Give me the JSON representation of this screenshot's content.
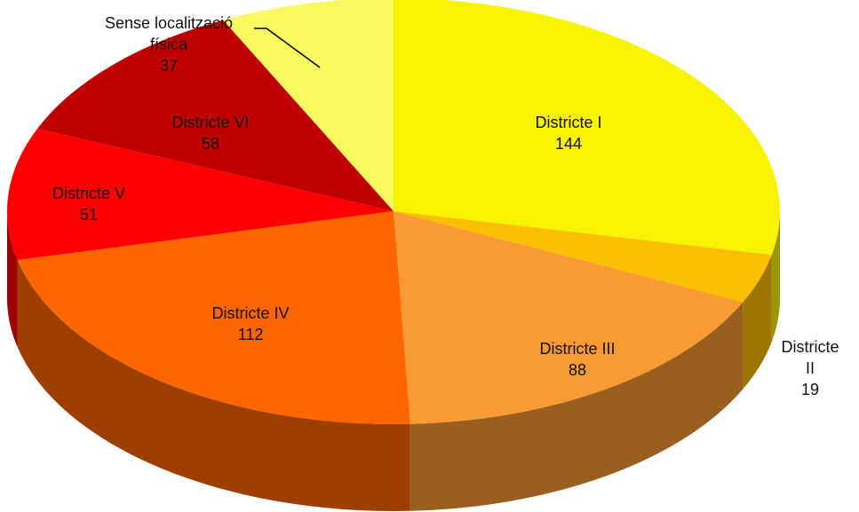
{
  "chart_data": {
    "type": "pie",
    "categories": [
      "Districte I",
      "Districte II",
      "Districte III",
      "Districte IV",
      "Districte V",
      "Districte VI",
      "Sense localització física"
    ],
    "values": [
      144,
      19,
      88,
      112,
      51,
      58,
      37
    ],
    "colors": [
      "#f8f400",
      "#fbbf00",
      "#f99a32",
      "#ff6600",
      "#fe0000",
      "#c00000",
      "#fafa60"
    ]
  }
}
